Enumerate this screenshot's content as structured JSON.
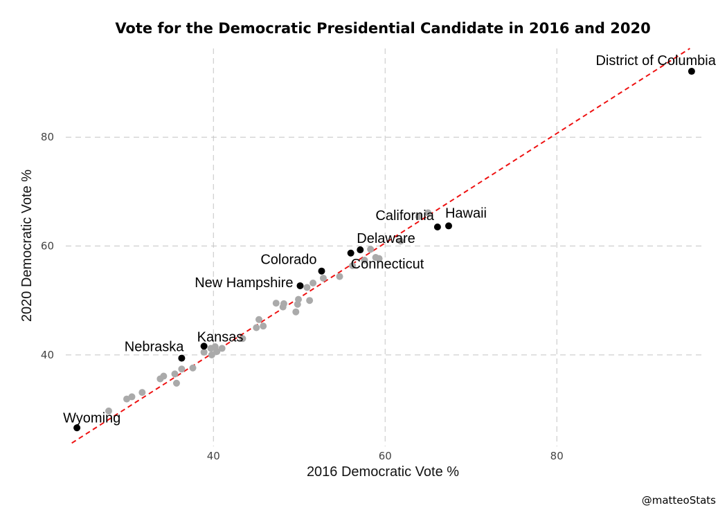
{
  "chart_data": {
    "type": "scatter",
    "title": "Vote for the Democratic Presidential Candidate in 2016 and 2020",
    "xlabel": "2016 Democratic Vote %",
    "ylabel": "2020 Democratic Vote %",
    "caption": "@matteoStats",
    "xlim": [
      22.8,
      97.0
    ],
    "ylim": [
      23.2,
      96.3
    ],
    "xticks": [
      40,
      60,
      80
    ],
    "yticks": [
      40,
      60,
      80
    ],
    "grid": true,
    "colors": {
      "highlight": "#000000",
      "other": "#aaaaaa",
      "reference_line": "#ee1111"
    },
    "reference_line": {
      "x": [
        23.5,
        95.5
      ],
      "y": [
        23.8,
        96.3
      ]
    },
    "highlighted": [
      {
        "label": "District of Columbia",
        "x": 95.7,
        "y": 92.1
      },
      {
        "label": "Hawaii",
        "x": 67.4,
        "y": 63.7
      },
      {
        "label": "California",
        "x": 66.1,
        "y": 63.5
      },
      {
        "label": "Delaware",
        "x": 57.1,
        "y": 59.3
      },
      {
        "label": "Connecticut",
        "x": 56.0,
        "y": 58.7
      },
      {
        "label": "Colorado",
        "x": 52.6,
        "y": 55.4
      },
      {
        "label": "New Hampshire",
        "x": 50.1,
        "y": 52.7
      },
      {
        "label": "Kansas",
        "x": 38.9,
        "y": 41.6
      },
      {
        "label": "Nebraska",
        "x": 36.3,
        "y": 39.4
      },
      {
        "label": "Wyoming",
        "x": 24.1,
        "y": 26.6
      }
    ],
    "others": [
      {
        "x": 27.8,
        "y": 29.7
      },
      {
        "x": 29.9,
        "y": 31.9
      },
      {
        "x": 30.5,
        "y": 32.3
      },
      {
        "x": 31.7,
        "y": 33.1
      },
      {
        "x": 33.8,
        "y": 35.6
      },
      {
        "x": 34.2,
        "y": 36.1
      },
      {
        "x": 35.5,
        "y": 36.5
      },
      {
        "x": 35.7,
        "y": 34.8
      },
      {
        "x": 36.3,
        "y": 37.4
      },
      {
        "x": 37.6,
        "y": 37.6
      },
      {
        "x": 38.9,
        "y": 40.5
      },
      {
        "x": 39.7,
        "y": 41.2
      },
      {
        "x": 39.8,
        "y": 40.0
      },
      {
        "x": 40.2,
        "y": 41.5
      },
      {
        "x": 40.4,
        "y": 40.6
      },
      {
        "x": 41.0,
        "y": 41.2
      },
      {
        "x": 43.4,
        "y": 43.0
      },
      {
        "x": 45.0,
        "y": 45.0
      },
      {
        "x": 45.3,
        "y": 46.5
      },
      {
        "x": 45.8,
        "y": 45.3
      },
      {
        "x": 47.3,
        "y": 49.5
      },
      {
        "x": 48.1,
        "y": 48.8
      },
      {
        "x": 48.2,
        "y": 49.4
      },
      {
        "x": 49.6,
        "y": 47.9
      },
      {
        "x": 49.8,
        "y": 49.3
      },
      {
        "x": 49.9,
        "y": 50.2
      },
      {
        "x": 50.9,
        "y": 52.4
      },
      {
        "x": 51.2,
        "y": 50.0
      },
      {
        "x": 51.6,
        "y": 53.2
      },
      {
        "x": 52.8,
        "y": 54.1
      },
      {
        "x": 54.7,
        "y": 54.4
      },
      {
        "x": 56.2,
        "y": 56.4
      },
      {
        "x": 57.6,
        "y": 57.4
      },
      {
        "x": 58.3,
        "y": 59.4
      },
      {
        "x": 58.9,
        "y": 57.9
      },
      {
        "x": 59.3,
        "y": 57.7
      },
      {
        "x": 61.8,
        "y": 60.9
      },
      {
        "x": 63.9,
        "y": 65.4
      },
      {
        "x": 65.0,
        "y": 66.1
      }
    ]
  }
}
